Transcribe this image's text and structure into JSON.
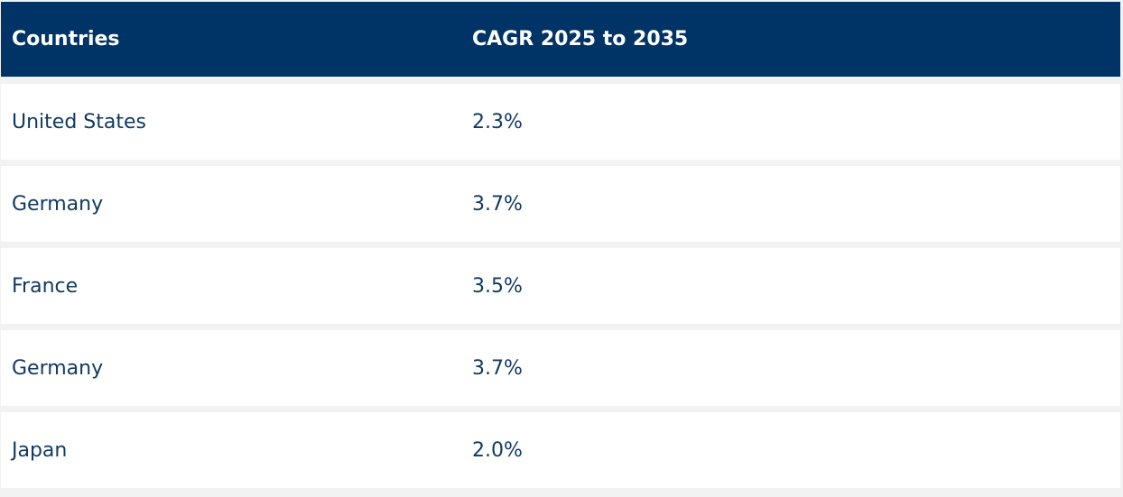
{
  "table": {
    "headers": {
      "country": "Countries",
      "cagr": "CAGR 2025 to 2035"
    },
    "rows": [
      {
        "country": "United States",
        "cagr": "2.3%"
      },
      {
        "country": "Germany",
        "cagr": "3.7%"
      },
      {
        "country": "France",
        "cagr": "3.5%"
      },
      {
        "country": "Germany",
        "cagr": "3.7%"
      },
      {
        "country": "Japan",
        "cagr": "2.0%"
      }
    ]
  },
  "colors": {
    "header_bg": "#003366",
    "header_text": "#ffffff",
    "row_text": "#123a62",
    "row_bg": "#ffffff",
    "separator": "#f2f2f2"
  }
}
